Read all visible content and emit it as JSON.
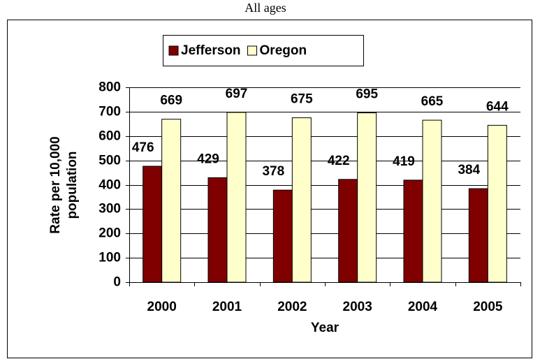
{
  "chart_data": {
    "type": "bar",
    "title": "All ages",
    "x_label": "Year",
    "y_label": [
      "Rate per 10,000",
      "population"
    ],
    "categories": [
      "2000",
      "2001",
      "2002",
      "2003",
      "2004",
      "2005"
    ],
    "series": [
      {
        "name": "Jefferson",
        "color": "#800000",
        "values": [
          476,
          429,
          378,
          422,
          419,
          384
        ]
      },
      {
        "name": "Oregon",
        "color": "#ffffcc",
        "values": [
          669,
          697,
          675,
          695,
          665,
          644
        ]
      }
    ],
    "ylim": [
      0,
      800
    ],
    "yticks": [
      0,
      100,
      200,
      300,
      400,
      500,
      600,
      700,
      800
    ],
    "grid": true,
    "legend": "top"
  }
}
